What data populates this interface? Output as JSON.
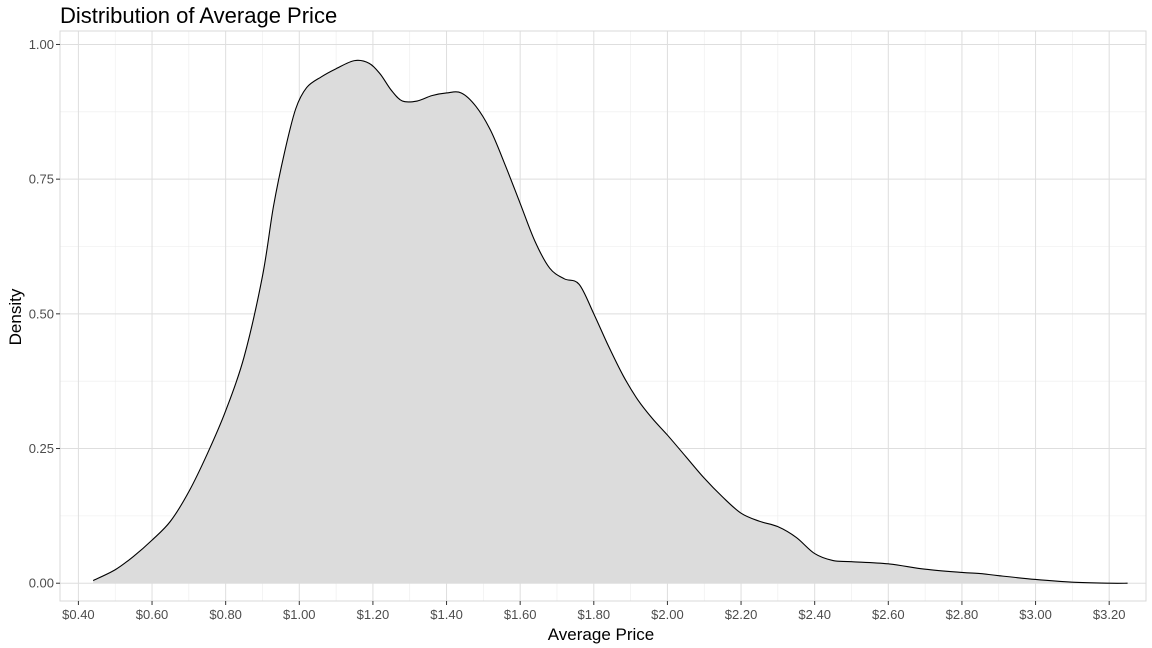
{
  "chart_data": {
    "type": "area",
    "title": "Distribution of Average Price",
    "xlabel": "Average Price",
    "ylabel": "Density",
    "xlim": [
      0.35,
      3.3
    ],
    "ylim": [
      -0.033,
      1.025
    ],
    "x_ticks": [
      0.4,
      0.6,
      0.8,
      1.0,
      1.2,
      1.4,
      1.6,
      1.8,
      2.0,
      2.2,
      2.4,
      2.6,
      2.8,
      3.0,
      3.2
    ],
    "x_tick_labels": [
      "$0.40",
      "$0.60",
      "$0.80",
      "$1.00",
      "$1.20",
      "$1.40",
      "$1.60",
      "$1.80",
      "$2.00",
      "$2.20",
      "$2.40",
      "$2.60",
      "$2.80",
      "$3.00",
      "$3.20"
    ],
    "y_ticks": [
      0.0,
      0.25,
      0.5,
      0.75,
      1.0
    ],
    "y_tick_labels": [
      "0.00",
      "0.25",
      "0.50",
      "0.75",
      "1.00"
    ],
    "grid": true,
    "fill_color": "#dcdcdc",
    "line_color": "#000000",
    "x": [
      0.44,
      0.5,
      0.55,
      0.6,
      0.65,
      0.7,
      0.75,
      0.8,
      0.85,
      0.9,
      0.93,
      0.96,
      0.99,
      1.02,
      1.06,
      1.1,
      1.15,
      1.19,
      1.22,
      1.25,
      1.28,
      1.32,
      1.36,
      1.4,
      1.44,
      1.48,
      1.52,
      1.56,
      1.6,
      1.64,
      1.68,
      1.72,
      1.76,
      1.8,
      1.84,
      1.88,
      1.92,
      1.96,
      2.0,
      2.05,
      2.1,
      2.15,
      2.2,
      2.25,
      2.3,
      2.35,
      2.4,
      2.45,
      2.5,
      2.6,
      2.7,
      2.8,
      2.85,
      2.9,
      3.0,
      3.1,
      3.2,
      3.25
    ],
    "y": [
      0.005,
      0.025,
      0.05,
      0.08,
      0.115,
      0.17,
      0.24,
      0.32,
      0.42,
      0.57,
      0.7,
      0.8,
      0.88,
      0.92,
      0.94,
      0.955,
      0.97,
      0.965,
      0.945,
      0.915,
      0.895,
      0.895,
      0.905,
      0.91,
      0.91,
      0.885,
      0.84,
      0.775,
      0.705,
      0.635,
      0.585,
      0.565,
      0.555,
      0.5,
      0.44,
      0.385,
      0.34,
      0.305,
      0.275,
      0.235,
      0.195,
      0.16,
      0.13,
      0.115,
      0.105,
      0.085,
      0.055,
      0.042,
      0.04,
      0.036,
      0.026,
      0.02,
      0.018,
      0.014,
      0.007,
      0.002,
      0.0,
      0.0
    ]
  }
}
